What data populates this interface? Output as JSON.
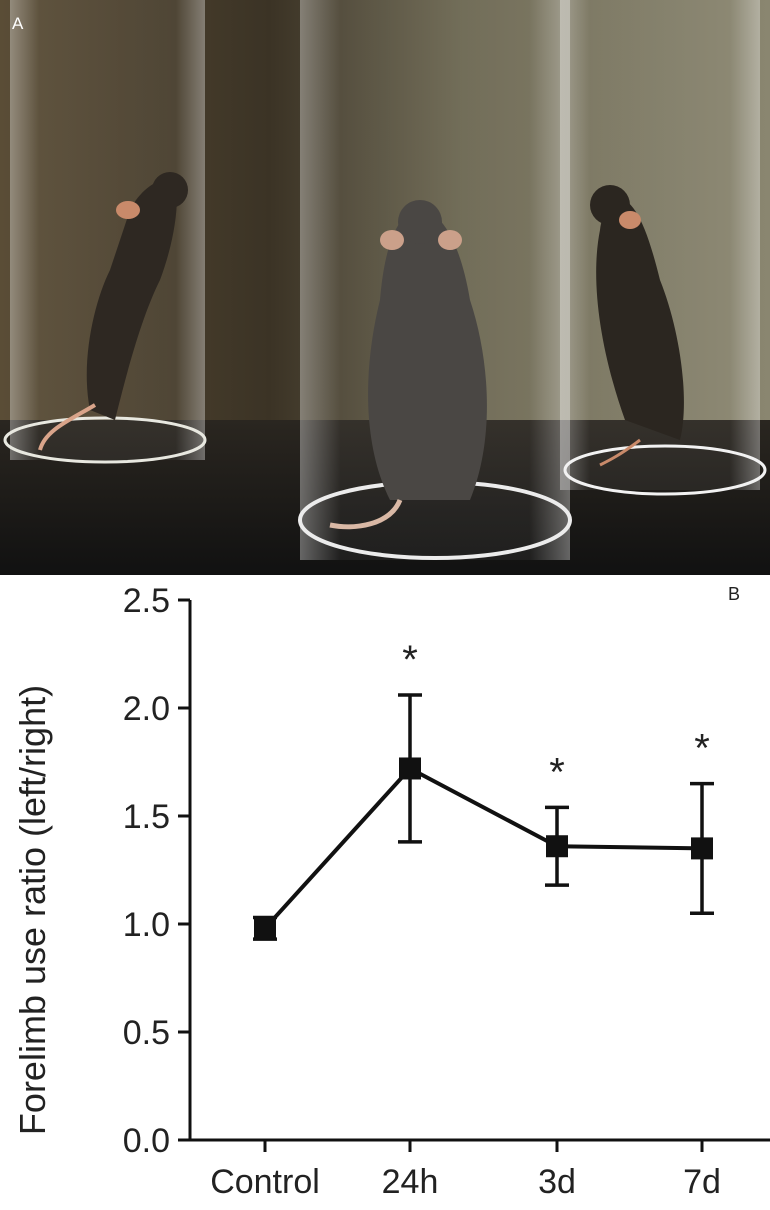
{
  "panels": {
    "photo_label": "A",
    "chart_label": "B"
  },
  "photo": {
    "subject": "mouse-in-cylinder-icon",
    "colors": {
      "background": "#3a3327",
      "mouse": "#2f2a24",
      "glass": "#cfd3cc"
    }
  },
  "chart_data": {
    "type": "line",
    "categories": [
      "Control",
      "24h",
      "3d",
      "7d"
    ],
    "series": [
      {
        "values": [
          0.98,
          1.72,
          1.36,
          1.35
        ],
        "error": [
          0.05,
          0.34,
          0.18,
          0.3
        ]
      }
    ],
    "significance": [
      "",
      "*",
      "*",
      "*"
    ],
    "ylabel": "Forelimb use ratio (left/right)",
    "xlabel": "",
    "title": "",
    "ylim": [
      0,
      2.5
    ],
    "yticks": [
      "0.0",
      "0.5",
      "1.0",
      "1.5",
      "2.0",
      "2.5"
    ],
    "grid": false,
    "color": "#111111"
  }
}
